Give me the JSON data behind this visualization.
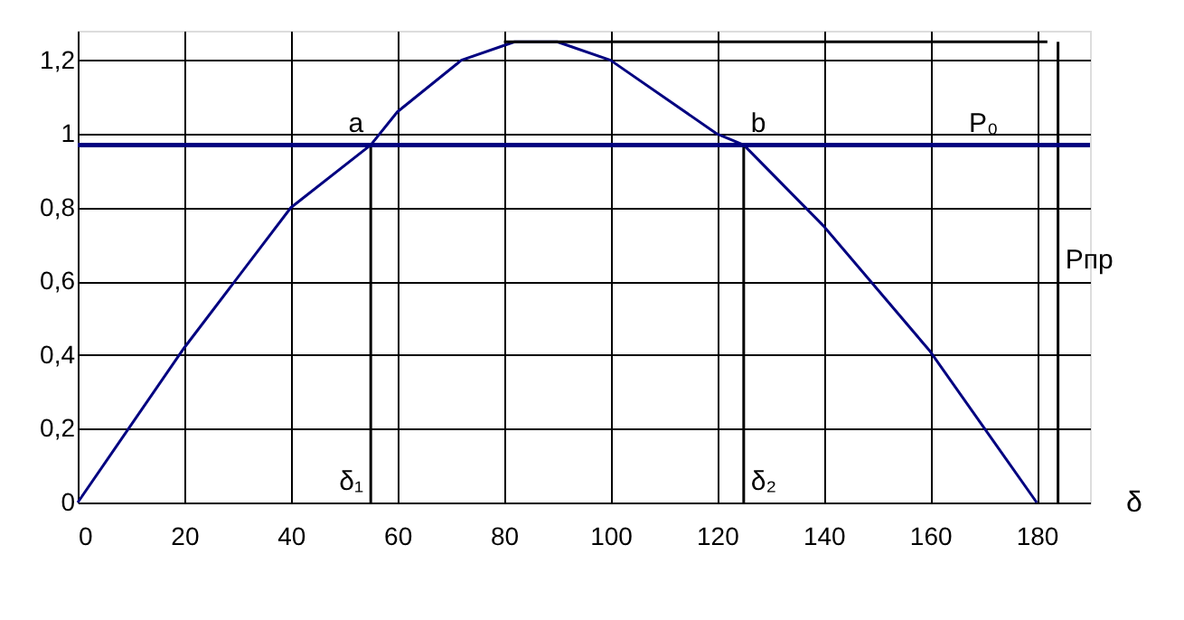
{
  "chart_data": {
    "type": "line",
    "xlabel": "δ",
    "xlim": [
      0,
      190
    ],
    "ylim": [
      0,
      1.28
    ],
    "xticks": [
      0,
      20,
      40,
      60,
      80,
      100,
      120,
      140,
      160,
      180
    ],
    "yticks": [
      0,
      {
        "value": 0.2,
        "label": "0,2"
      },
      {
        "value": 0.4,
        "label": "0,4"
      },
      {
        "value": 0.6,
        "label": "0,6"
      },
      {
        "value": 0.8,
        "label": "0,8"
      },
      1,
      {
        "value": 1.2,
        "label": "1,2"
      }
    ],
    "grid": true,
    "marker": "none",
    "line_style": "solid",
    "series": [
      {
        "color": "#000080",
        "x": [
          0,
          20,
          40,
          55,
          60,
          72,
          82,
          90,
          100,
          120,
          125,
          140,
          160,
          180
        ],
        "values": [
          0,
          0.42,
          0.8,
          0.97,
          1.06,
          1.2,
          1.25,
          1.25,
          1.2,
          1.0,
          0.97,
          0.75,
          0.41,
          0
        ]
      },
      {
        "color": "#000000",
        "x": [
          55,
          55
        ],
        "values": [
          0,
          0.97
        ]
      },
      {
        "color": "#000000",
        "x": [
          125,
          125
        ],
        "values": [
          0,
          0.97
        ]
      },
      {
        "color": "#000000",
        "x": [
          80,
          182
        ],
        "values": [
          1.25,
          1.25
        ]
      },
      {
        "color": "#000000",
        "x": [
          184,
          184
        ],
        "values": [
          0,
          1.25
        ]
      }
    ],
    "ref_lines": [
      {
        "axis": "y",
        "value": 0.97,
        "label": "P₀",
        "color": "#000080"
      }
    ],
    "annotations": [
      {
        "text": "a",
        "x": 55,
        "y": 0.97
      },
      {
        "text": "b",
        "x": 125,
        "y": 0.97
      },
      {
        "text": "δ₁",
        "x": 55,
        "y": 0
      },
      {
        "text": "δ₂",
        "x": 125,
        "y": 0
      },
      {
        "text": "Pпр",
        "x": 184,
        "y": 0.6
      }
    ]
  }
}
